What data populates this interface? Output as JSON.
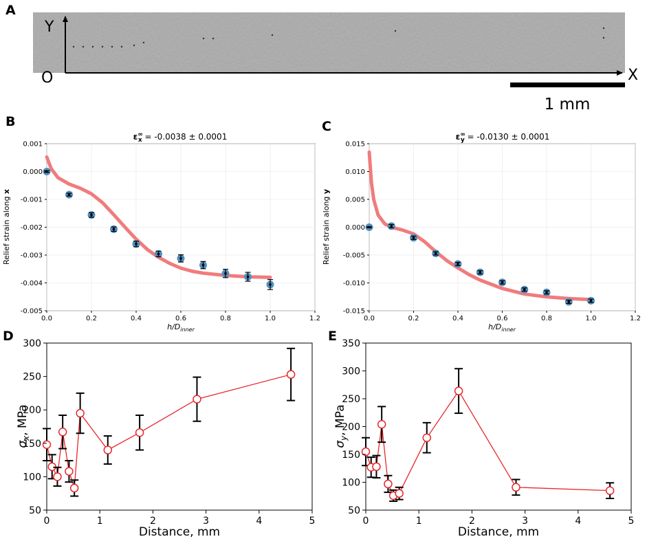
{
  "panelA": {
    "label": "A",
    "y_axis": "Y",
    "origin": "O",
    "x_axis": "X",
    "scale_bar": "1 mm"
  },
  "chart_data": [
    {
      "id": "B",
      "type": "scatter",
      "label": "B",
      "title_prefix": "ε",
      "title_sub": "x",
      "title_sup": "∞",
      "title_value": " = -0.0038 ± 0.0001",
      "xlabel_main": "h/D",
      "xlabel_sub": "inner",
      "ylabel_main": "Relief strain along ",
      "ylabel_bold": "x",
      "xlim": [
        0.0,
        1.2
      ],
      "ylim": [
        -0.005,
        0.001
      ],
      "xticks": [
        0.0,
        0.2,
        0.4,
        0.6,
        0.8,
        1.0,
        1.2
      ],
      "yticks": [
        0.001,
        0.0,
        -0.001,
        -0.002,
        -0.003,
        -0.004,
        -0.005
      ],
      "xtick_labels": [
        "0.0",
        "0.2",
        "0.4",
        "0.6",
        "0.8",
        "1.0",
        "1.2"
      ],
      "ytick_labels": [
        "0.001",
        "0.000",
        "-0.001",
        "-0.002",
        "-0.003",
        "-0.004",
        "-0.005"
      ],
      "points": {
        "x": [
          0.0,
          0.1,
          0.2,
          0.3,
          0.4,
          0.5,
          0.6,
          0.7,
          0.8,
          0.9,
          1.0
        ],
        "y": [
          0.0,
          -0.00083,
          -0.00156,
          -0.00207,
          -0.0026,
          -0.00296,
          -0.00312,
          -0.00336,
          -0.00366,
          -0.00378,
          -0.00406
        ],
        "err": [
          3e-05,
          5e-05,
          8e-05,
          8e-05,
          0.0001,
          0.0001,
          0.00013,
          0.00013,
          0.00015,
          0.00016,
          0.00018
        ]
      },
      "fit": {
        "x": [
          0.0,
          0.02,
          0.05,
          0.1,
          0.15,
          0.2,
          0.25,
          0.3,
          0.35,
          0.4,
          0.45,
          0.5,
          0.55,
          0.6,
          0.65,
          0.7,
          0.8,
          0.9,
          1.0
        ],
        "y": [
          0.00052,
          0.0001,
          -0.00022,
          -0.00045,
          -0.0006,
          -0.0008,
          -0.00112,
          -0.00155,
          -0.002,
          -0.00243,
          -0.0028,
          -0.00308,
          -0.0033,
          -0.00347,
          -0.00358,
          -0.00365,
          -0.00373,
          -0.00378,
          -0.0038
        ]
      },
      "colors": {
        "fit": "#f07c7c",
        "marker": "#4f8fc0"
      }
    },
    {
      "id": "C",
      "type": "scatter",
      "label": "C",
      "title_prefix": "ε",
      "title_sub": "y",
      "title_sup": "∞",
      "title_value": " = -0.0130 ± 0.0001",
      "xlabel_main": "h/D",
      "xlabel_sub": "inner",
      "ylabel_main": "Relief strain along ",
      "ylabel_bold": "y",
      "xlim": [
        0.0,
        1.2
      ],
      "ylim": [
        -0.015,
        0.015
      ],
      "xticks": [
        0.0,
        0.2,
        0.4,
        0.6,
        0.8,
        1.0,
        1.2
      ],
      "yticks": [
        0.015,
        0.01,
        0.005,
        0.0,
        -0.005,
        -0.01,
        -0.015
      ],
      "xtick_labels": [
        "0.0",
        "0.2",
        "0.4",
        "0.6",
        "0.8",
        "1.0",
        "1.2"
      ],
      "ytick_labels": [
        "0.015",
        "0.010",
        "0.005",
        "0.000",
        "-0.005",
        "-0.010",
        "-0.015"
      ],
      "points": {
        "x": [
          0.0,
          0.1,
          0.2,
          0.3,
          0.4,
          0.5,
          0.6,
          0.7,
          0.8,
          0.9,
          1.0
        ],
        "y": [
          0.0,
          0.0002,
          -0.0019,
          -0.0047,
          -0.0066,
          -0.0081,
          -0.0099,
          -0.0112,
          -0.0117,
          -0.0134,
          -0.0132
        ],
        "err": [
          0.0001,
          0.0003,
          0.0003,
          0.0003,
          0.0003,
          0.0003,
          0.0003,
          0.0003,
          0.0003,
          0.0003,
          0.0003
        ]
      },
      "fit": {
        "x": [
          0.0,
          0.01,
          0.02,
          0.04,
          0.07,
          0.1,
          0.15,
          0.2,
          0.25,
          0.3,
          0.35,
          0.4,
          0.45,
          0.5,
          0.6,
          0.7,
          0.8,
          0.9,
          1.0
        ],
        "y": [
          0.0135,
          0.008,
          0.005,
          0.0022,
          0.0006,
          0.0,
          -0.0005,
          -0.0012,
          -0.0026,
          -0.0044,
          -0.006,
          -0.0073,
          -0.0085,
          -0.0095,
          -0.011,
          -0.012,
          -0.0125,
          -0.0128,
          -0.013
        ]
      },
      "colors": {
        "fit": "#f07c7c",
        "marker": "#4f8fc0"
      }
    },
    {
      "id": "D",
      "type": "line",
      "label": "D",
      "xlabel": "Distance, mm",
      "ylabel_symbol": "σ",
      "ylabel_sub": "x",
      "ylabel_unit": ", MPa",
      "xlim": [
        0,
        5
      ],
      "ylim": [
        50,
        300
      ],
      "xticks": [
        0,
        1,
        2,
        3,
        4,
        5
      ],
      "yticks": [
        50,
        100,
        150,
        200,
        250,
        300
      ],
      "xtick_labels": [
        "0",
        "1",
        "2",
        "3",
        "4",
        "5"
      ],
      "ytick_labels": [
        "50",
        "100",
        "150",
        "200",
        "250",
        "300"
      ],
      "points": {
        "x": [
          0.0,
          0.1,
          0.2,
          0.3,
          0.42,
          0.52,
          0.63,
          1.15,
          1.75,
          2.83,
          4.6
        ],
        "y": [
          148,
          115,
          100,
          167,
          108,
          83,
          195,
          140,
          166,
          216,
          253
        ],
        "err": [
          24,
          18,
          14,
          25,
          16,
          12,
          30,
          21,
          26,
          33,
          39
        ]
      },
      "colors": {
        "line": "#e8262a",
        "marker_face": "#ffffff",
        "marker_edge": "#e8262a"
      }
    },
    {
      "id": "E",
      "type": "line",
      "label": "E",
      "xlabel": "Distance, mm",
      "ylabel_symbol": "σ",
      "ylabel_sub": "y",
      "ylabel_unit": ", MPa",
      "xlim": [
        0,
        5
      ],
      "ylim": [
        50,
        350
      ],
      "xticks": [
        0,
        1,
        2,
        3,
        4,
        5
      ],
      "yticks": [
        50,
        100,
        150,
        200,
        250,
        300,
        350
      ],
      "xtick_labels": [
        "0",
        "1",
        "2",
        "3",
        "4",
        "5"
      ],
      "ytick_labels": [
        "50",
        "100",
        "150",
        "200",
        "250",
        "300",
        "350"
      ],
      "points": {
        "x": [
          0.0,
          0.1,
          0.2,
          0.3,
          0.42,
          0.52,
          0.63,
          1.15,
          1.75,
          2.83,
          4.6
        ],
        "y": [
          155,
          127,
          128,
          204,
          97,
          76,
          80,
          180,
          264,
          91,
          85
        ],
        "err": [
          25,
          18,
          20,
          32,
          15,
          10,
          11,
          27,
          40,
          14,
          14
        ]
      },
      "colors": {
        "line": "#e8262a",
        "marker_face": "#ffffff",
        "marker_edge": "#e8262a"
      }
    }
  ]
}
